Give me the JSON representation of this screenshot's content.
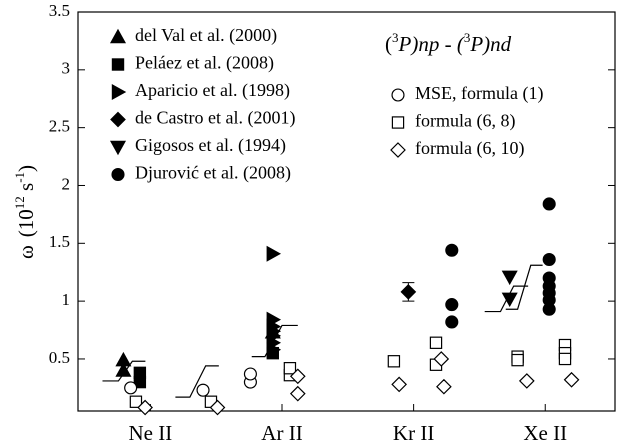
{
  "chart_data": {
    "type": "scatter",
    "ylabel_parts": [
      "ω",
      "(10",
      "12",
      " s",
      "-1",
      ")"
    ],
    "legend_title_parts": [
      "(",
      "3",
      "P)",
      "np",
      " - (",
      "3",
      "P)",
      "nd"
    ],
    "xlim": [
      0.45,
      4.53
    ],
    "xticks": [
      {
        "value": 1,
        "label": "Ne II"
      },
      {
        "value": 2,
        "label": "Ar II"
      },
      {
        "value": 3,
        "label": "Kr II"
      },
      {
        "value": 4,
        "label": "Xe II"
      }
    ],
    "ylim": [
      0.05,
      3.5
    ],
    "yticks": [
      0.5,
      1,
      1.5,
      2,
      2.5,
      3,
      3.5
    ],
    "series": [
      {
        "name": "del Val et al. (2000)",
        "marker": "triangle-up",
        "filled": true,
        "color": "#000",
        "x": [
          0.795,
          0.795,
          1.93
        ],
        "values": [
          0.49,
          0.4,
          0.73
        ]
      },
      {
        "name": "Peláez et al. (2008)",
        "marker": "square",
        "filled": true,
        "color": "#000",
        "x": [
          0.92,
          0.92,
          1.93
        ],
        "values": [
          0.38,
          0.3,
          0.55
        ]
      },
      {
        "name": "Aparicio et al. (1998)",
        "marker": "triangle-right",
        "filled": true,
        "color": "#000",
        "x": [
          1.93,
          1.93,
          1.93,
          1.93,
          1.93,
          1.93,
          1.93
        ],
        "values": [
          1.41,
          0.84,
          0.78,
          0.74,
          0.7,
          0.64,
          0.58
        ]
      },
      {
        "name": "de Castro et al. (2001)",
        "marker": "diamond",
        "filled": true,
        "color": "#000",
        "x": [
          2.96
        ],
        "values": [
          1.08
        ],
        "errors": [
          0.08
        ]
      },
      {
        "name": "Gigosos et al. (1994)",
        "marker": "triangle-down",
        "filled": true,
        "color": "#000",
        "x": [
          3.73,
          3.73
        ],
        "values": [
          1.21,
          1.02
        ]
      },
      {
        "name": "Djurović et al. (2008)",
        "marker": "circle",
        "filled": true,
        "color": "#000",
        "x": [
          3.29,
          3.29,
          3.29,
          4.03,
          4.03,
          4.03,
          4.03,
          4.03,
          4.03,
          4.03
        ],
        "values": [
          1.44,
          0.97,
          0.82,
          1.84,
          1.36,
          1.2,
          1.13,
          1.07,
          1.01,
          0.93
        ]
      },
      {
        "name": "MSE, formula (1)",
        "marker": "circle",
        "filled": false,
        "color": "#000",
        "x": [
          0.85,
          1.4,
          1.76,
          1.76
        ],
        "values": [
          0.25,
          0.23,
          0.3,
          0.37
        ]
      },
      {
        "name": "formula (6, 8)",
        "marker": "square",
        "filled": false,
        "color": "#000",
        "x": [
          0.89,
          1.46,
          2.06,
          2.06,
          2.85,
          3.17,
          3.17,
          3.79,
          3.79,
          4.15,
          4.15,
          4.15
        ],
        "values": [
          0.13,
          0.13,
          0.36,
          0.42,
          0.48,
          0.64,
          0.45,
          0.52,
          0.49,
          0.62,
          0.55,
          0.5
        ]
      },
      {
        "name": "formula (6, 10)",
        "marker": "diamond",
        "filled": false,
        "color": "#000",
        "x": [
          0.96,
          1.51,
          2.12,
          2.12,
          2.89,
          3.21,
          3.23,
          3.86,
          4.2
        ],
        "values": [
          0.08,
          0.08,
          0.2,
          0.35,
          0.28,
          0.5,
          0.26,
          0.31,
          0.32
        ]
      }
    ],
    "curves": [
      {
        "x": [
          0.636,
          0.757,
          0.863,
          0.962
        ],
        "values": [
          0.31,
          0.31,
          0.48,
          0.48
        ]
      },
      {
        "x": [
          1.19,
          1.3,
          1.42,
          1.52
        ],
        "values": [
          0.17,
          0.17,
          0.44,
          0.44
        ]
      },
      {
        "x": [
          1.77,
          1.87,
          2.0,
          2.12
        ],
        "values": [
          0.52,
          0.52,
          0.79,
          0.79
        ]
      },
      {
        "x": [
          3.54,
          3.66,
          3.76,
          3.87
        ],
        "values": [
          0.91,
          0.91,
          1.13,
          1.13
        ]
      },
      {
        "x": [
          3.7,
          3.79,
          3.89,
          3.98
        ],
        "values": [
          0.93,
          0.93,
          1.31,
          1.31
        ]
      }
    ]
  }
}
